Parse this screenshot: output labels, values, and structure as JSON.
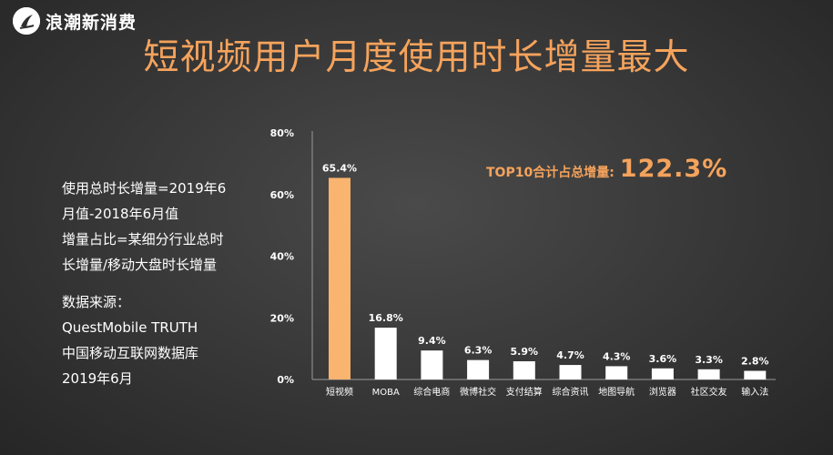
{
  "brand": {
    "logo_text": "浪潮新消费",
    "logo_icon": "wave-logo-icon"
  },
  "title": "短视频用户月度使用时长增量最大",
  "notes": {
    "definition": [
      "使用总时长增量=2019年6",
      "月值-2018年6月值",
      "增量占比=某细分行业总时",
      "长增量/移动大盘时长增量"
    ],
    "source": [
      "数据来源：",
      "QuestMobile TRUTH",
      "中国移动互联网数据库",
      "2019年6月"
    ]
  },
  "callout": {
    "label": "TOP10合计占总增量:",
    "value": "122.3%"
  },
  "colors": {
    "accent": "#f5a35c",
    "highlight_bar": "#f9b46f",
    "bar": "#ffffff"
  },
  "chart_data": {
    "type": "bar",
    "categories": [
      "短视频",
      "MOBA",
      "综合电商",
      "微博社交",
      "支付结算",
      "综合资讯",
      "地图导航",
      "浏览器",
      "社区交友",
      "输入法"
    ],
    "values": [
      65.4,
      16.8,
      9.4,
      6.3,
      5.9,
      4.7,
      4.3,
      3.6,
      3.3,
      2.8
    ],
    "data_labels": [
      "65.4%",
      "16.8%",
      "9.4%",
      "6.3%",
      "5.9%",
      "4.7%",
      "4.3%",
      "3.6%",
      "3.3%",
      "2.8%"
    ],
    "ylim": [
      0,
      80
    ],
    "yticks": [
      0,
      20,
      40,
      60,
      80
    ],
    "ytick_labels": [
      "0%",
      "20%",
      "40%",
      "60%",
      "80%"
    ],
    "highlight_index": 0,
    "title": "",
    "xlabel": "",
    "ylabel": ""
  }
}
